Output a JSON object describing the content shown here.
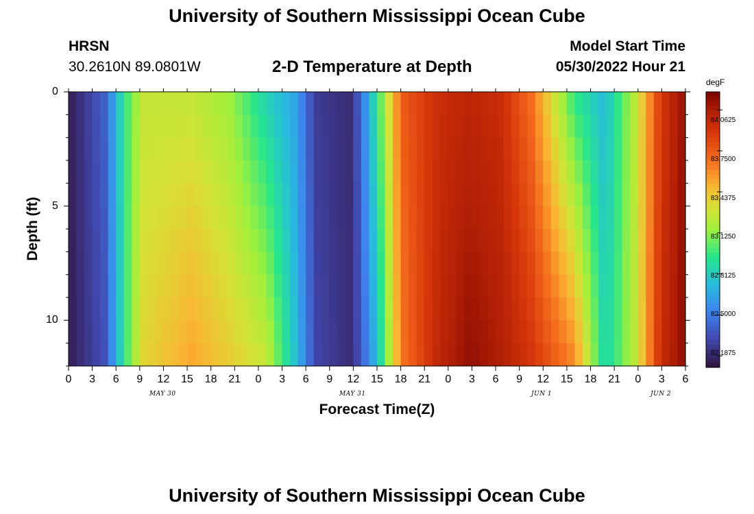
{
  "page": {
    "title": "University of Southern Mississippi Ocean Cube",
    "title_repeat": "University of Southern Mississippi Ocean Cube",
    "station": "HRSN",
    "coords": "30.2610N  89.0801W",
    "subtitle": "2-D Temperature at Depth",
    "model_label": "Model Start Time",
    "model_time": "05/30/2022 Hour 21"
  },
  "chart_data": {
    "type": "heatmap",
    "xlabel": "Forecast Time(Z)",
    "ylabel": "Depth (ft)",
    "y_ticks": [
      "0",
      "5",
      "10"
    ],
    "x_ticks": [
      "0",
      "3",
      "6",
      "9",
      "12",
      "15",
      "18",
      "21",
      "0",
      "3",
      "6",
      "9",
      "12",
      "15",
      "18",
      "21",
      "0",
      "3",
      "6",
      "9",
      "12",
      "15",
      "18",
      "21",
      "0",
      "3",
      "6"
    ],
    "day_labels": [
      "MAY 30",
      "MAY 31",
      "JUN 1",
      "JUN 2"
    ],
    "colorbar_unit": "degF",
    "colorbar_labels": [
      "84.0625",
      "83.7500",
      "83.4375",
      "83.1250",
      "82.8125",
      "82.5000",
      "82.1875"
    ],
    "colorbar_range": [
      82.1,
      84.2
    ],
    "x_hours_range": [
      0,
      78
    ],
    "depth_range_ft": [
      0,
      12
    ]
  }
}
